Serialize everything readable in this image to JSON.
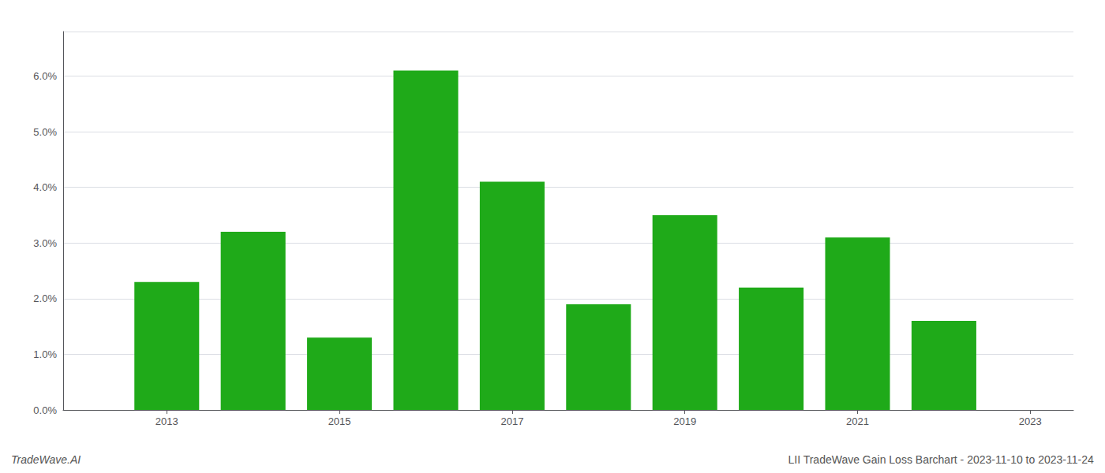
{
  "chart_data": {
    "type": "bar",
    "x": [
      2013,
      2014,
      2015,
      2016,
      2017,
      2018,
      2019,
      2020,
      2021,
      2022
    ],
    "values": [
      0.023,
      0.032,
      0.013,
      0.061,
      0.041,
      0.019,
      0.035,
      0.022,
      0.031,
      0.016
    ],
    "color": "#1faa19",
    "xlim": [
      2011.8,
      2023.5
    ],
    "xticks": [
      2013,
      2015,
      2017,
      2019,
      2021,
      2023
    ],
    "ylim": [
      0,
      0.068
    ],
    "yticks": [
      {
        "value": 0.0,
        "label": "0.0%"
      },
      {
        "value": 0.01,
        "label": "1.0%"
      },
      {
        "value": 0.02,
        "label": "2.0%"
      },
      {
        "value": 0.03,
        "label": "3.0%"
      },
      {
        "value": 0.04,
        "label": "4.0%"
      },
      {
        "value": 0.05,
        "label": "5.0%"
      },
      {
        "value": 0.06,
        "label": "6.0%"
      }
    ],
    "grid": true,
    "annotations": [
      "TradeWave.AI",
      "LII TradeWave Gain Loss Barchart - 2023-11-10 to 2023-11-24"
    ]
  }
}
